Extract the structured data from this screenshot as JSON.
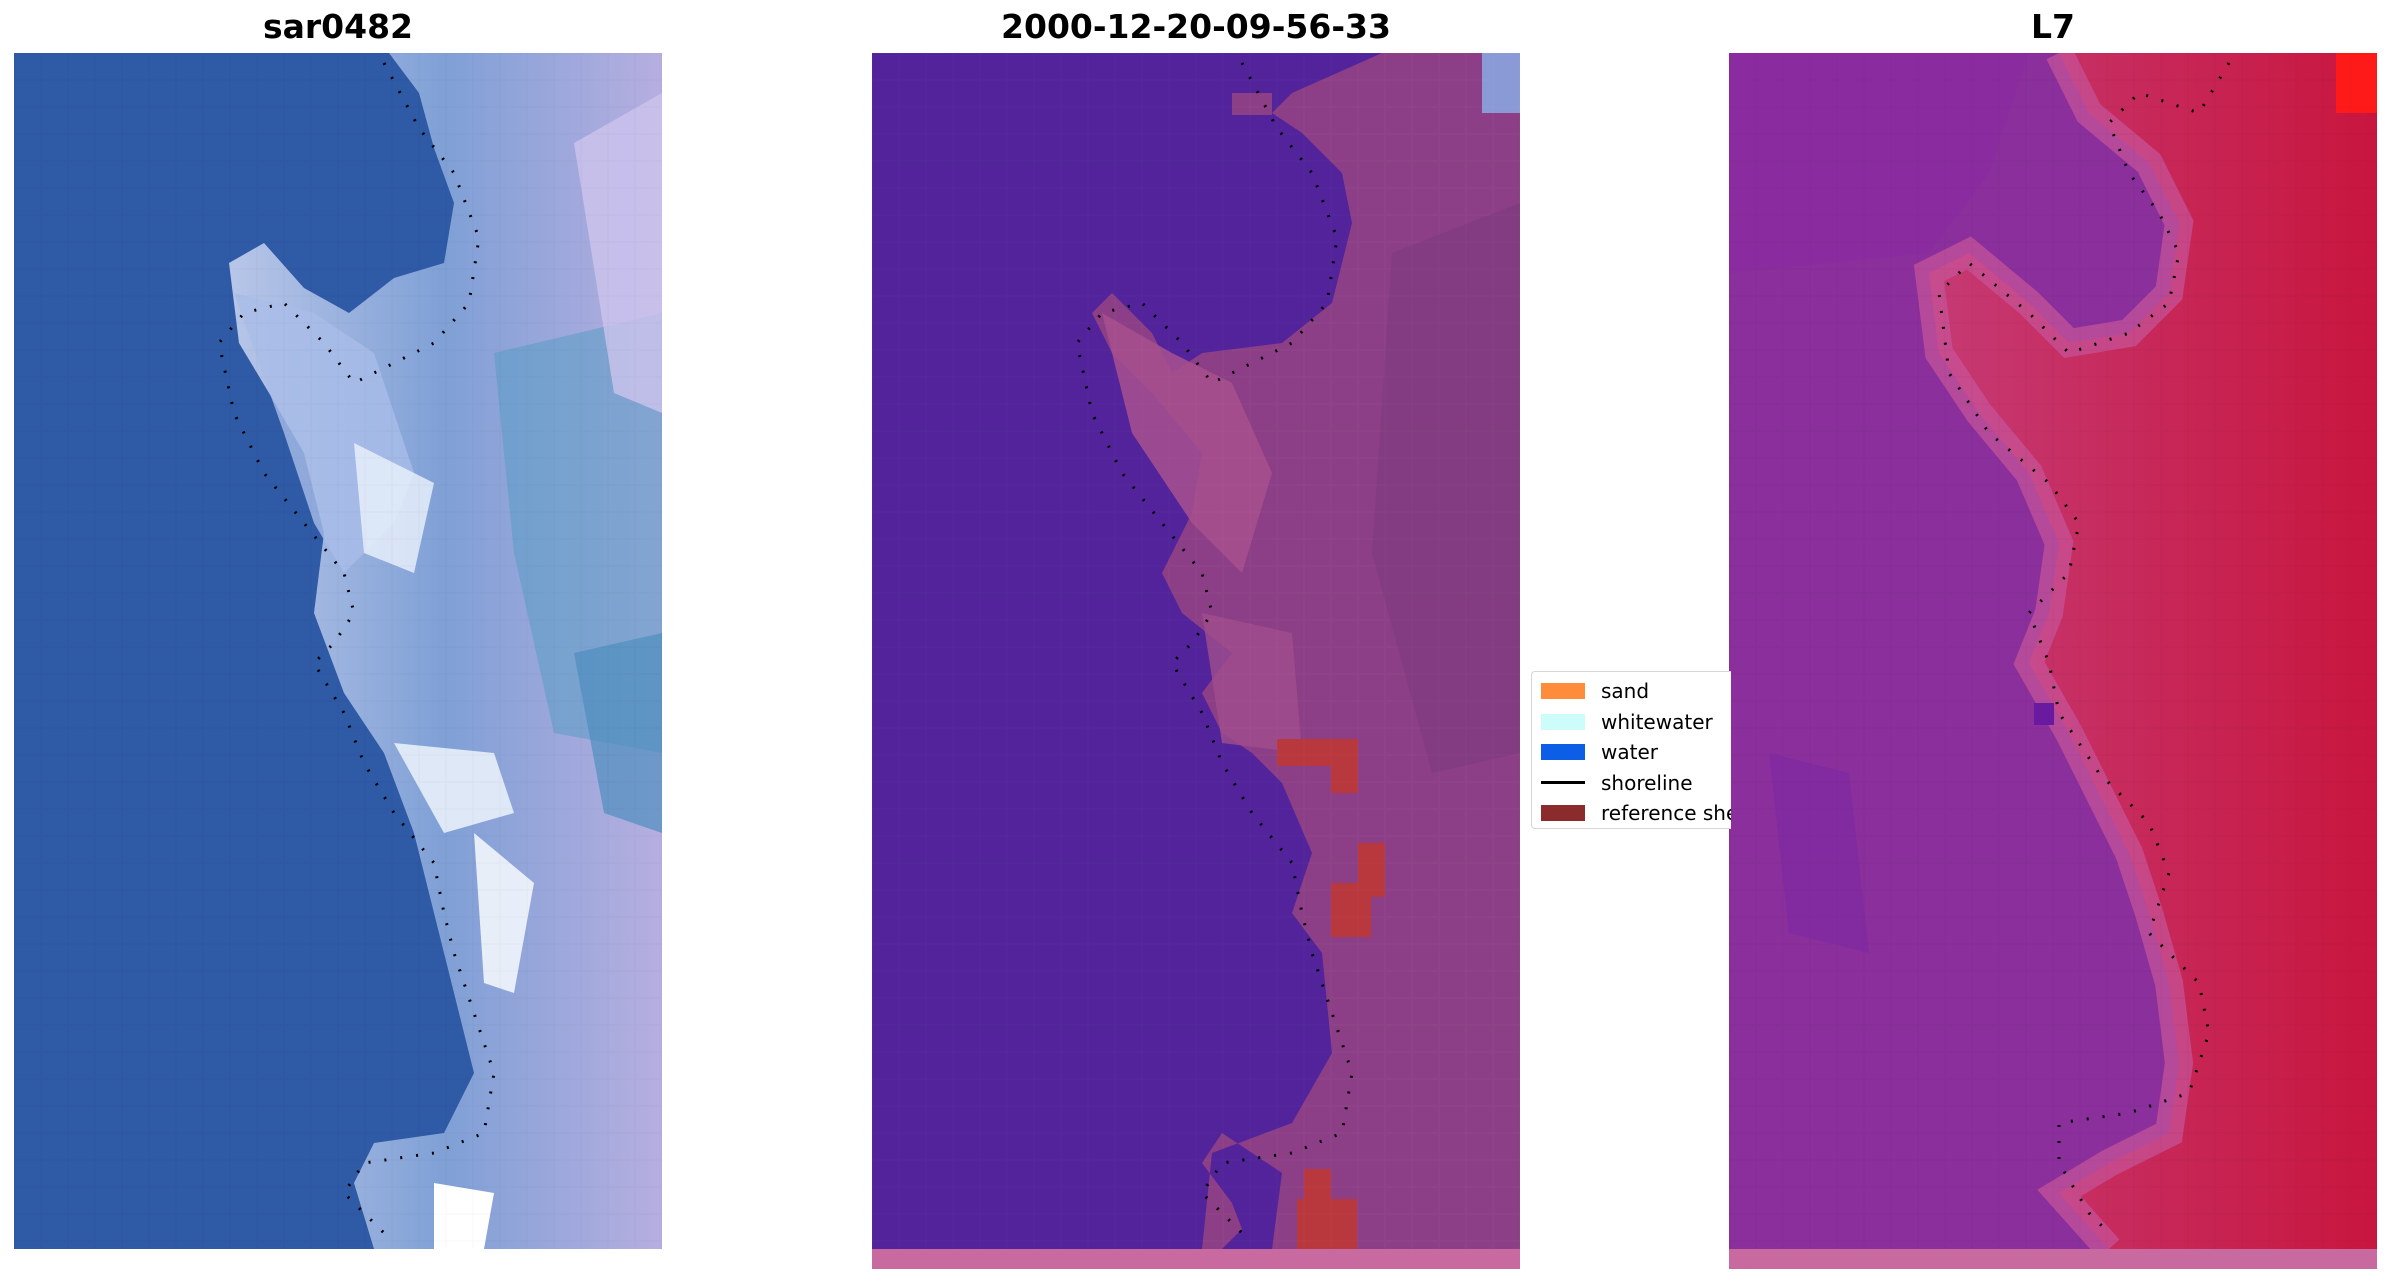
{
  "panels": [
    {
      "title": "sar0482",
      "kind": "rgb",
      "colors": {
        "water": "#2f5aa6",
        "land_light": "#c8d4ee",
        "whitewater": "#e8f0fa",
        "teal": "#5a9cc4",
        "lavender": "#b7aee0"
      }
    },
    {
      "title": "2000-12-20-09-56-33",
      "kind": "classification",
      "colors": {
        "water": "#52239a",
        "land": "#8c3f86",
        "land_light": "#a8508e",
        "reference": "#b9383e",
        "bottom_strip": "#c86aa0",
        "corner_blue": "#8a9ad6"
      }
    },
    {
      "title": "L7",
      "kind": "index",
      "colors": {
        "water": "#8b2f9c",
        "mid": "#c04a8c",
        "land": "#cc1e4c",
        "bright": "#ff1a1a",
        "bottom_strip": "#c86aa0"
      }
    }
  ],
  "legend": {
    "items": [
      {
        "label": "sand",
        "type": "patch",
        "color": "#ff8c3a"
      },
      {
        "label": "whitewater",
        "type": "patch",
        "color": "#ccfdfb"
      },
      {
        "label": "water",
        "type": "patch",
        "color": "#0d5ee6"
      },
      {
        "label": "shoreline",
        "type": "line",
        "color": "#000000"
      },
      {
        "label": "reference she",
        "type": "patch",
        "color": "#8c2b2b"
      }
    ]
  }
}
